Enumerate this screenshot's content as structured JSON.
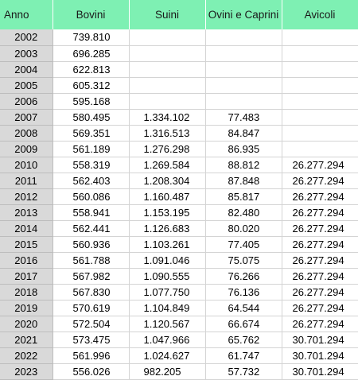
{
  "headers": [
    "Anno",
    "Bovini",
    "Suini",
    "Ovini e Caprini",
    "Avicoli"
  ],
  "rows": [
    [
      "2002",
      "739.810",
      "",
      "",
      ""
    ],
    [
      "2003",
      "696.285",
      "",
      "",
      ""
    ],
    [
      "2004",
      "622.813",
      "",
      "",
      ""
    ],
    [
      "2005",
      "605.312",
      "",
      "",
      ""
    ],
    [
      "2006",
      "595.168",
      "",
      "",
      ""
    ],
    [
      "2007",
      "580.495",
      "1.334.102",
      "77.483",
      ""
    ],
    [
      "2008",
      "569.351",
      "1.316.513",
      "84.847",
      ""
    ],
    [
      "2009",
      "561.189",
      "1.276.298",
      "86.935",
      ""
    ],
    [
      "2010",
      "558.319",
      "1.269.584",
      "88.812",
      "26.277.294"
    ],
    [
      "2011",
      "562.403",
      "1.208.304",
      "87.848",
      "26.277.294"
    ],
    [
      "2012",
      "560.086",
      "1.160.487",
      "85.817",
      "26.277.294"
    ],
    [
      "2013",
      "558.941",
      "1.153.195",
      "82.480",
      "26.277.294"
    ],
    [
      "2014",
      "562.441",
      "1.126.683",
      "80.020",
      "26.277.294"
    ],
    [
      "2015",
      "560.936",
      "1.103.261",
      "77.405",
      "26.277.294"
    ],
    [
      "2016",
      "561.788",
      "1.091.046",
      "75.075",
      "26.277.294"
    ],
    [
      "2017",
      "567.982",
      "1.090.555",
      "76.266",
      "26.277.294"
    ],
    [
      "2018",
      "567.830",
      "1.077.750",
      "76.136",
      "26.277.294"
    ],
    [
      "2019",
      "570.619",
      "1.104.849",
      "64.544",
      "26.277.294"
    ],
    [
      "2020",
      "572.504",
      "1.120.567",
      "66.674",
      "26.277.294"
    ],
    [
      "2021",
      "573.475",
      "1.047.966",
      "65.762",
      "30.701.294"
    ],
    [
      "2022",
      "561.996",
      "1.024.627",
      "61.747",
      "30.701.294"
    ],
    [
      "2023",
      "556.026",
      "982.205",
      "57.732",
      "30.701.294"
    ]
  ],
  "colors": {
    "header_background": "#7ef0b3",
    "year_column_background": "#d9d9d9"
  }
}
